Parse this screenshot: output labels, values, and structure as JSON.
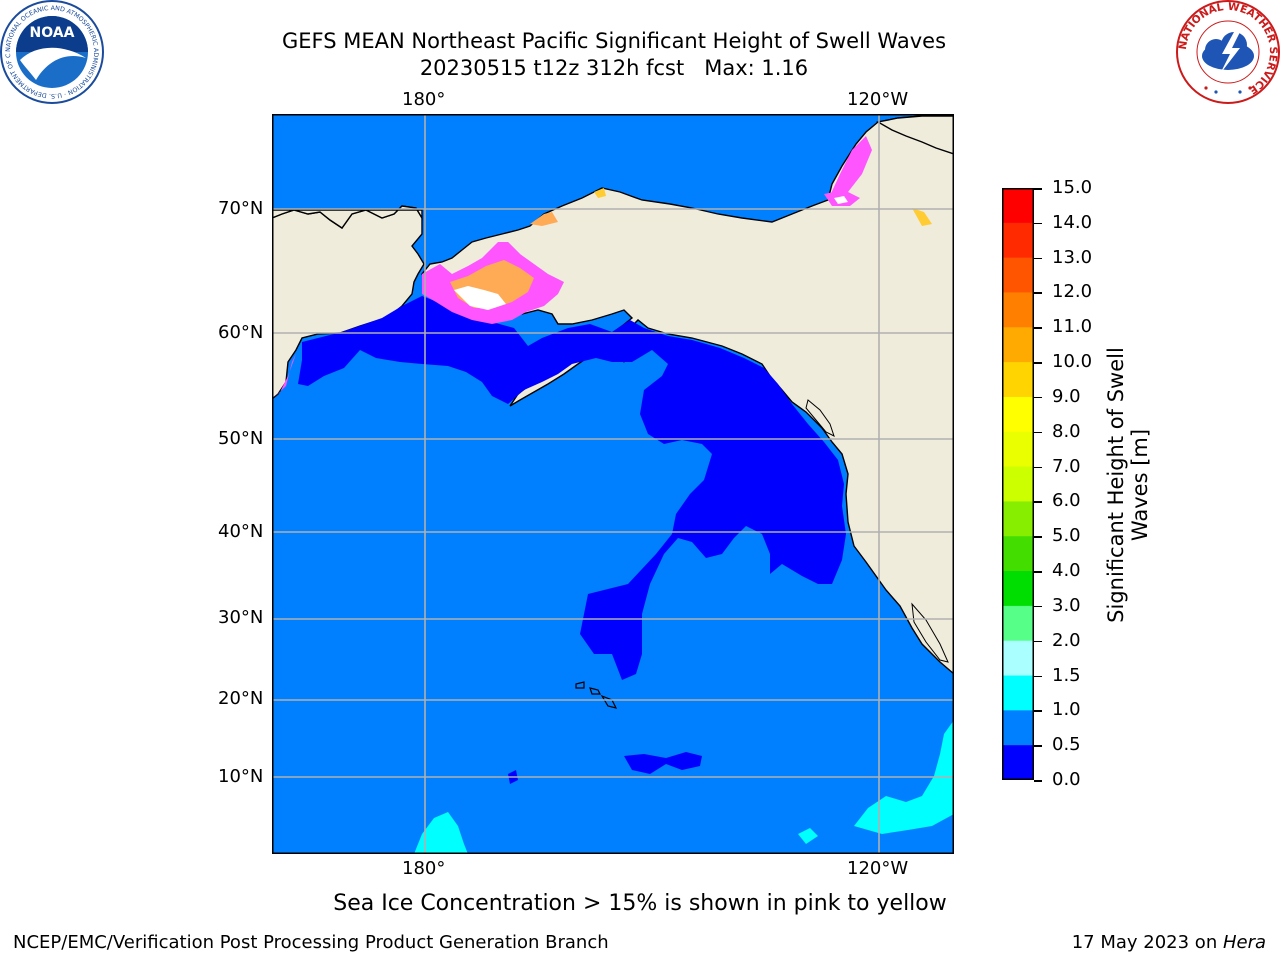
{
  "header": {
    "title_line1": "GEFS MEAN Northeast Pacific Significant Height of Swell Waves",
    "title_line2": "20230515 t12z 312h fcst   Max: 1.16"
  },
  "logos": {
    "left": {
      "name": "noaa-logo",
      "text": "NOAA",
      "ring_text": "NATIONAL OCEANIC AND ATMOSPHERIC ADMINISTRATION · U.S. DEPARTMENT OF COMMERCE"
    },
    "right": {
      "name": "nws-logo",
      "ring_text": "NATIONAL WEATHER SERVICE"
    }
  },
  "map": {
    "longitude_labels": [
      "180°",
      "120°W"
    ],
    "latitude_labels": [
      "70°N",
      "60°N",
      "50°N",
      "40°N",
      "30°N",
      "20°N",
      "10°N"
    ],
    "colors": {
      "ocean_swell_0_5_1_0": "#0080ff",
      "ocean_swell_0_0_5": "#0000ff",
      "ocean_swell_1_0_1_5": "#00ffff",
      "land": "#efecdc",
      "gridline": "#b0b0b0",
      "sea_ice_pink": "#ff55ff",
      "sea_ice_orange": "#ffaa55",
      "sea_ice_yellow": "#ffcc33"
    }
  },
  "colorbar": {
    "label": "Significant Height of Swell Waves [m]",
    "label_line1": "Significant Height of Swell",
    "label_line2": "Waves [m]",
    "ticks": [
      "15.0",
      "14.0",
      "13.0",
      "12.0",
      "11.0",
      "10.0",
      "9.0",
      "8.0",
      "7.0",
      "6.0",
      "5.0",
      "4.0",
      "3.0",
      "2.0",
      "1.5",
      "1.0",
      "0.5",
      "0.0"
    ],
    "colors_top_to_bottom": [
      "#ff0000",
      "#ff2a00",
      "#ff5500",
      "#ff8000",
      "#ffaa00",
      "#ffd400",
      "#ffff00",
      "#eaff00",
      "#ccff00",
      "#88ee00",
      "#44dd00",
      "#00dd00",
      "#55ff88",
      "#aaffff",
      "#55ffff",
      "#00ffff",
      "#0080ff",
      "#0000ff"
    ]
  },
  "note": "Sea Ice Concentration > 15% is shown in pink to yellow",
  "footer": {
    "left": "NCEP/EMC/Verification Post Processing Product Generation Branch",
    "right_date": "17 May 2023 on ",
    "right_host": "Hera"
  }
}
